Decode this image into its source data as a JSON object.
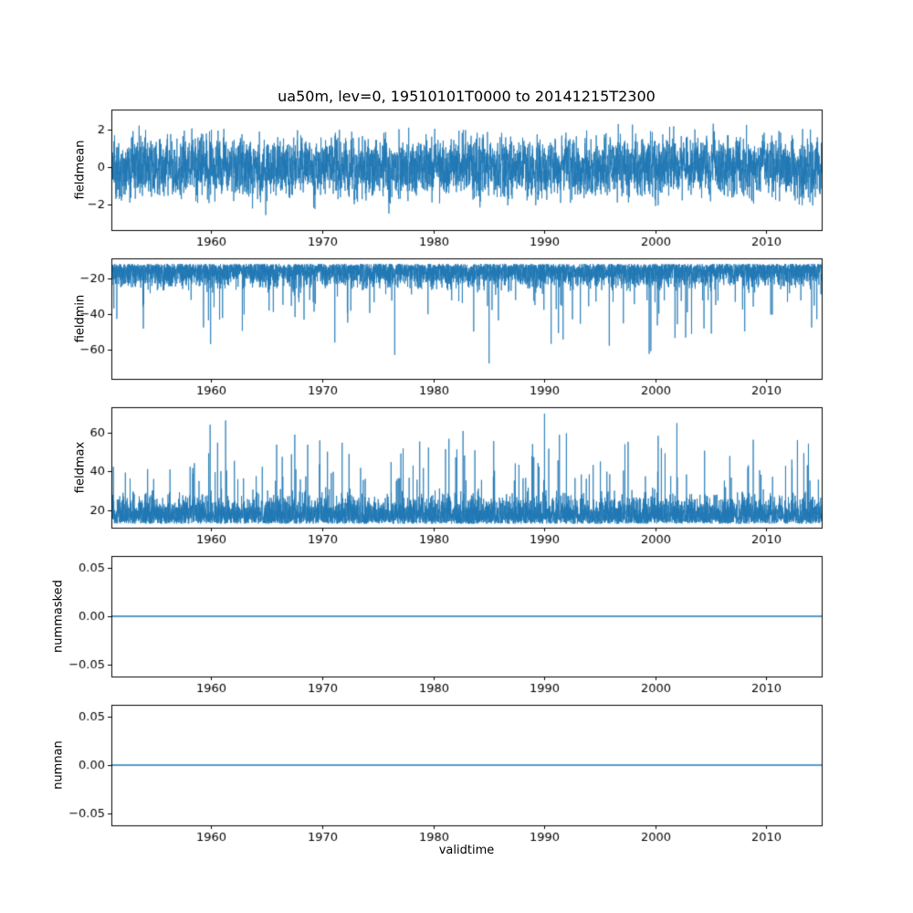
{
  "title": "ua50m, lev=0, 19510101T0000 to 20141215T2300",
  "xlabel": "validtime",
  "colors": {
    "line": "#1f77b4",
    "axis": "#000000",
    "text": "#000000",
    "background": "#ffffff"
  },
  "x_axis": {
    "min": 1951,
    "max": 2015,
    "ticks": [
      {
        "v": 1960,
        "label": "1960"
      },
      {
        "v": 1970,
        "label": "1970"
      },
      {
        "v": 1980,
        "label": "1980"
      },
      {
        "v": 1990,
        "label": "1990"
      },
      {
        "v": 2000,
        "label": "2000"
      },
      {
        "v": 2010,
        "label": "2010"
      }
    ]
  },
  "chart_data": [
    {
      "type": "line",
      "name": "fieldmean",
      "ylabel": "fieldmean",
      "ylim": [
        -3.35,
        3.05
      ],
      "yticks": [
        {
          "v": 2,
          "label": "2"
        },
        {
          "v": 0,
          "label": "0"
        },
        {
          "v": -2,
          "label": "−2"
        }
      ],
      "stats": {
        "approx_mean": 0.0,
        "approx_min": -3.2,
        "approx_max": 2.9
      },
      "synthetic": true,
      "gen": {
        "kind": "sym",
        "seed": 11,
        "n": 6000,
        "scale": 1.25,
        "spikeProb": 0.004,
        "clamp": [
          -3.25,
          2.95
        ],
        "lineWidth": 0.8
      }
    },
    {
      "type": "line",
      "name": "fieldmin",
      "ylabel": "fieldmin",
      "ylim": [
        -76,
        -9
      ],
      "yticks": [
        {
          "v": -20,
          "label": "−20"
        },
        {
          "v": -40,
          "label": "−40"
        },
        {
          "v": -60,
          "label": "−60"
        }
      ],
      "stats": {
        "approx_mean": -18,
        "approx_min": -72,
        "approx_max": -11
      },
      "synthetic": true,
      "gen": {
        "kind": "neg",
        "seed": 22,
        "n": 6000,
        "base": -12,
        "scale": 10,
        "spikeProb": 0.015,
        "spikeBase": -32,
        "spikeScale": 40,
        "clamp": [
          -73,
          -11
        ],
        "lineWidth": 0.8
      }
    },
    {
      "type": "line",
      "name": "fieldmax",
      "ylabel": "fieldmax",
      "ylim": [
        11,
        73
      ],
      "yticks": [
        {
          "v": 60,
          "label": "60"
        },
        {
          "v": 40,
          "label": "40"
        },
        {
          "v": 20,
          "label": "20"
        }
      ],
      "stats": {
        "approx_mean": 24,
        "approx_min": 13,
        "approx_max": 71
      },
      "synthetic": true,
      "gen": {
        "kind": "pos",
        "seed": 33,
        "n": 6000,
        "base": 13,
        "scale": 11,
        "spikeProb": 0.02,
        "spikeBase": 35,
        "spikeScale": 36,
        "clamp": [
          13,
          71.5
        ],
        "lineWidth": 0.8
      }
    },
    {
      "type": "line",
      "name": "nummasked",
      "ylabel": "nummasked",
      "ylim": [
        -0.0625,
        0.0625
      ],
      "yticks": [
        {
          "v": 0.05,
          "label": "0.05"
        },
        {
          "v": 0,
          "label": "0.00"
        },
        {
          "v": -0.05,
          "label": "−0.05"
        }
      ],
      "stats": {
        "constant": 0
      },
      "points": [
        [
          1951,
          0
        ],
        [
          2015,
          0
        ]
      ],
      "gen": {
        "kind": "flat",
        "value": 0,
        "lineWidth": 1.5
      }
    },
    {
      "type": "line",
      "name": "numnan",
      "ylabel": "numnan",
      "ylim": [
        -0.0625,
        0.0625
      ],
      "yticks": [
        {
          "v": 0.05,
          "label": "0.05"
        },
        {
          "v": 0,
          "label": "0.00"
        },
        {
          "v": -0.05,
          "label": "−0.05"
        }
      ],
      "stats": {
        "constant": 0
      },
      "points": [
        [
          1951,
          0
        ],
        [
          2015,
          0
        ]
      ],
      "gen": {
        "kind": "flat",
        "value": 0,
        "lineWidth": 1.5
      }
    }
  ]
}
